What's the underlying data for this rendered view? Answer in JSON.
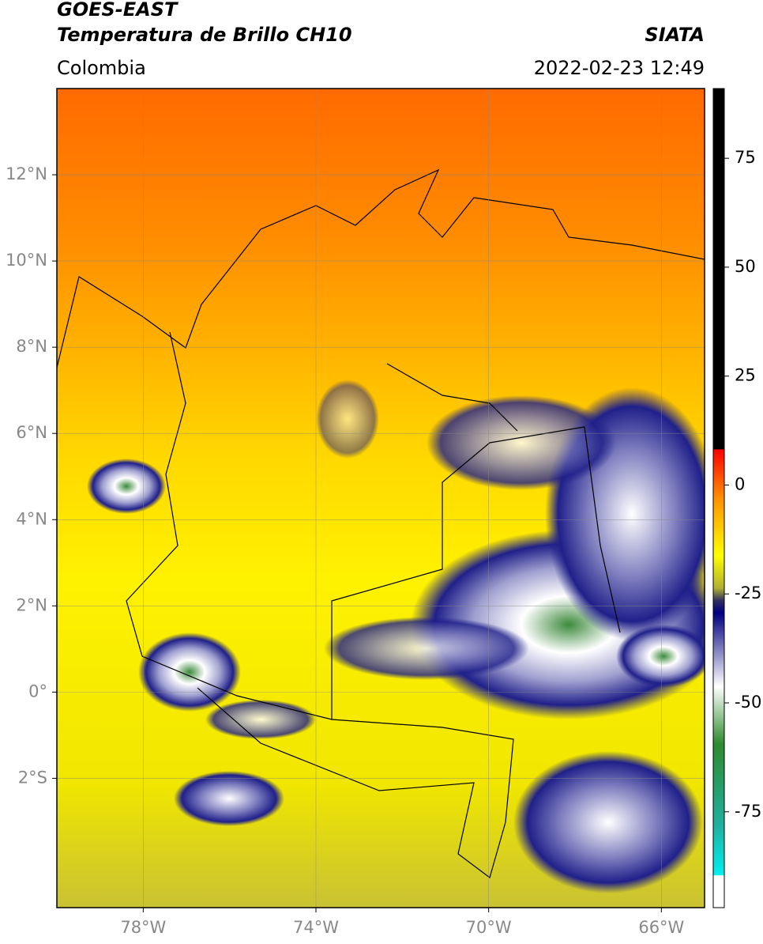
{
  "header": {
    "title": "GOES-EAST",
    "subtitle": "Temperatura de Brillo CH10",
    "source": "SIATA",
    "region": "Colombia",
    "timestamp": "2022-02-23 12:49"
  },
  "map": {
    "xlim": [
      -80,
      -65
    ],
    "ylim": [
      -5,
      14
    ],
    "xticks": [
      {
        "value": -78,
        "label": "78°W"
      },
      {
        "value": -74,
        "label": "74°W"
      },
      {
        "value": -70,
        "label": "70°W"
      },
      {
        "value": -66,
        "label": "66°W"
      }
    ],
    "yticks": [
      {
        "value": 12,
        "label": "12°N"
      },
      {
        "value": 10,
        "label": "10°N"
      },
      {
        "value": 8,
        "label": "8°N"
      },
      {
        "value": 6,
        "label": "6°N"
      },
      {
        "value": 4,
        "label": "4°N"
      },
      {
        "value": 2,
        "label": "2°N"
      },
      {
        "value": 0,
        "label": "0°"
      },
      {
        "value": -2,
        "label": "2°S"
      }
    ],
    "grid": true
  },
  "colorbar": {
    "lim": [
      -97,
      91
    ],
    "ticks": [
      75,
      50,
      25,
      0,
      -25,
      -50,
      -75
    ]
  }
}
